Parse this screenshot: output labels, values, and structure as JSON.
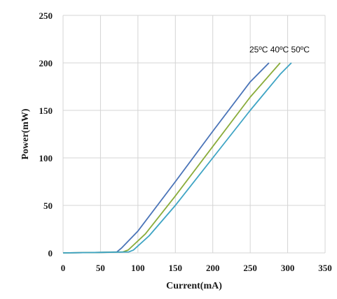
{
  "chart_data": {
    "type": "line",
    "xlabel": "Current(mA)",
    "ylabel": "Power(mW)",
    "xlim": [
      0,
      350
    ],
    "ylim": [
      0,
      250
    ],
    "xticks": [
      0,
      50,
      100,
      150,
      200,
      250,
      300,
      350
    ],
    "yticks": [
      0,
      50,
      100,
      150,
      200,
      250
    ],
    "grid": true,
    "legend_text": "25ºC 40ºC 50ºC",
    "legend_placement": "top-right",
    "series": [
      {
        "name": "25ºC",
        "color": "#4a74b8",
        "x": [
          0,
          50,
          72,
          78,
          100,
          150,
          200,
          250,
          275
        ],
        "y": [
          0,
          0.5,
          1,
          5,
          23,
          75,
          128,
          180,
          200
        ]
      },
      {
        "name": "40ºC",
        "color": "#8aac3a",
        "x": [
          0,
          50,
          80,
          87,
          110,
          150,
          200,
          250,
          290
        ],
        "y": [
          0,
          0.5,
          1,
          3,
          20,
          60,
          112,
          164,
          200
        ]
      },
      {
        "name": "50ºC",
        "color": "#3ea4c4",
        "x": [
          0,
          50,
          88,
          94,
          115,
          150,
          200,
          250,
          290,
          305
        ],
        "y": [
          0,
          0.5,
          1,
          3,
          18,
          50,
          100,
          150,
          188,
          200
        ]
      }
    ]
  }
}
